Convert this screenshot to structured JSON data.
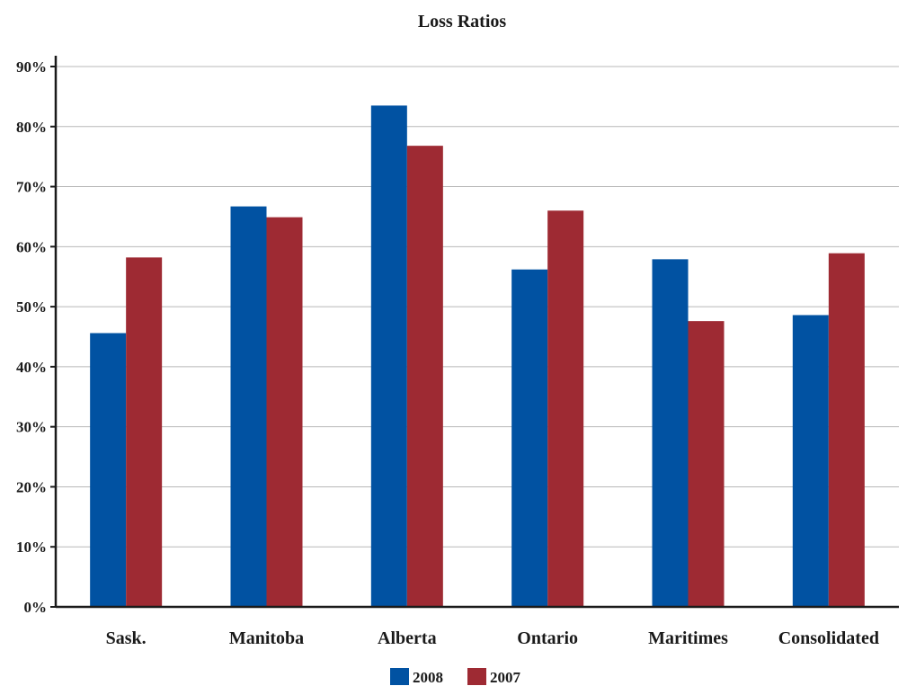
{
  "chart_data": {
    "type": "bar",
    "title": "Loss Ratios",
    "xlabel": "",
    "ylabel": "",
    "categories": [
      "Sask.",
      "Manitoba",
      "Alberta",
      "Ontario",
      "Maritimes",
      "Consolidated"
    ],
    "series": [
      {
        "name": "2008",
        "color": "#0152a2",
        "values": [
          45.6,
          66.7,
          83.5,
          56.2,
          57.9,
          48.6
        ]
      },
      {
        "name": "2007",
        "color": "#9e2a33",
        "values": [
          58.2,
          64.9,
          76.8,
          66.0,
          47.6,
          58.9
        ]
      }
    ],
    "ylim": [
      0,
      90
    ],
    "yticks": [
      "0%",
      "10%",
      "20%",
      "30%",
      "40%",
      "50%",
      "60%",
      "70%",
      "80%",
      "90%"
    ],
    "grid": true,
    "legend": "bottom-center"
  }
}
